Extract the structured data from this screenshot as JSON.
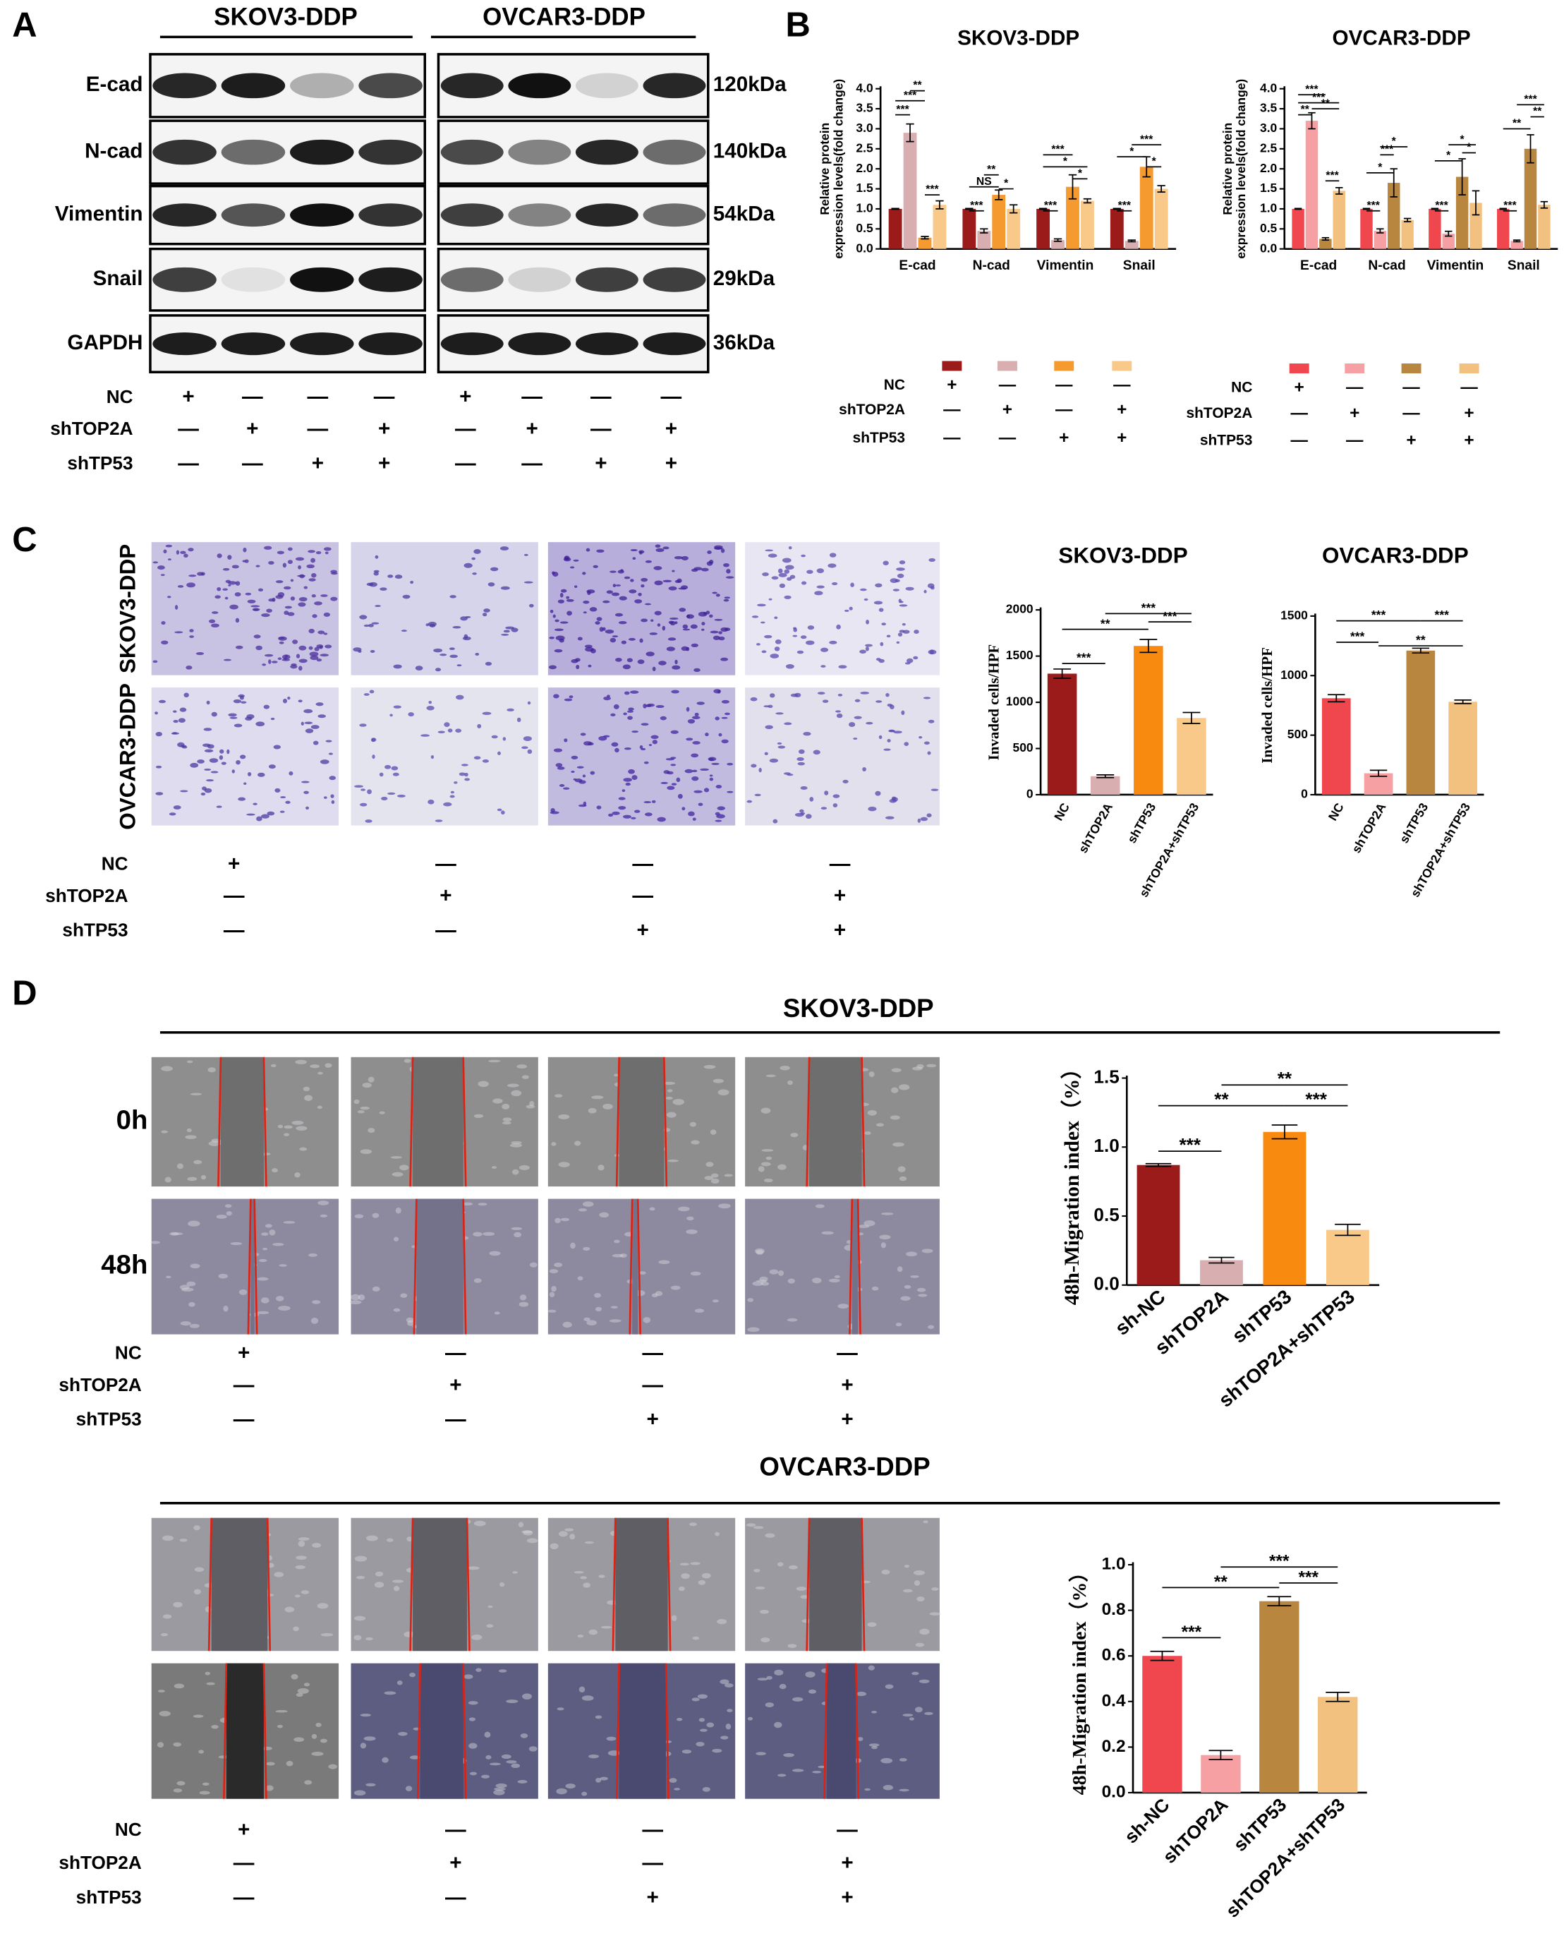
{
  "panel_letters": [
    "A",
    "B",
    "C",
    "D"
  ],
  "blot": {
    "headers": [
      "SKOV3-DDP",
      "OVCAR3-DDP"
    ],
    "proteins": [
      "E-cad",
      "N-cad",
      "Vimentin",
      "Snail",
      "GAPDH"
    ],
    "sizes": [
      "120kDa",
      "140kDa",
      "54kDa",
      "29kDa",
      "36kDa"
    ],
    "conditions": {
      "rows": [
        {
          "label": "NC",
          "signs": [
            "+",
            "—",
            "—",
            "—",
            "+",
            "—",
            "—",
            "—"
          ]
        },
        {
          "label": "shTOP2A",
          "signs": [
            "—",
            "+",
            "—",
            "+",
            "—",
            "+",
            "—",
            "+"
          ]
        },
        {
          "label": "shTP53",
          "signs": [
            "—",
            "—",
            "+",
            "+",
            "—",
            "—",
            "+",
            "+"
          ]
        }
      ]
    }
  },
  "invasion": {
    "row_labels": [
      "SKOV3-DDP",
      "OVCAR3-DDP"
    ],
    "conditions": {
      "rows": [
        {
          "label": "NC",
          "signs": [
            "+",
            "—",
            "—",
            "—"
          ]
        },
        {
          "label": "shTOP2A",
          "signs": [
            "—",
            "+",
            "—",
            "+"
          ]
        },
        {
          "label": "shTP53",
          "signs": [
            "—",
            "—",
            "+",
            "+"
          ]
        }
      ]
    }
  },
  "migration": [
    {
      "title": "SKOV3-DDP",
      "times": [
        "0h",
        "48h"
      ],
      "conditions": {
        "rows": [
          {
            "label": "NC",
            "signs": [
              "+",
              "—",
              "—",
              "—"
            ]
          },
          {
            "label": "shTOP2A",
            "signs": [
              "—",
              "+",
              "—",
              "+"
            ]
          },
          {
            "label": "shTP53",
            "signs": [
              "—",
              "—",
              "+",
              "+"
            ]
          }
        ]
      }
    },
    {
      "title": "OVCAR3-DDP",
      "conditions": {
        "rows": [
          {
            "label": "NC",
            "signs": [
              "+",
              "—",
              "—",
              "—"
            ]
          },
          {
            "label": "shTOP2A",
            "signs": [
              "—",
              "+",
              "—",
              "+"
            ]
          },
          {
            "label": "shTP53",
            "signs": [
              "—",
              "—",
              "+",
              "+"
            ]
          }
        ]
      }
    }
  ],
  "chart_data": [
    {
      "type": "bar",
      "title": "SKOV3-DDP",
      "ylabel": [
        "Relative  protein",
        "expression levels(fold change)"
      ],
      "categories": [
        "E-cad",
        "N-cad",
        "Vimentin",
        "Snail"
      ],
      "series": [
        {
          "color": "#9b1b1b",
          "values": [
            1,
            1,
            1,
            1
          ],
          "errors": [
            0.01,
            0.01,
            0.01,
            0.01
          ]
        },
        {
          "color": "#d8aeb0",
          "values": [
            2.9,
            0.45,
            0.22,
            0.2
          ],
          "errors": [
            0.22,
            0.05,
            0.03,
            0.02
          ]
        },
        {
          "color": "#f59a2f",
          "values": [
            0.28,
            1.35,
            1.55,
            2.05
          ],
          "errors": [
            0.03,
            0.12,
            0.3,
            0.25
          ]
        },
        {
          "color": "#f9c98a",
          "values": [
            1.1,
            1.0,
            1.2,
            1.5
          ],
          "errors": [
            0.1,
            0.1,
            0.05,
            0.08
          ]
        }
      ],
      "ylim": [
        0,
        4
      ],
      "yticks": [
        {
          "value": 0,
          "label": "0.0"
        },
        0.5,
        {
          "value": 1,
          "label": "1.0"
        },
        1.5,
        {
          "value": 2,
          "label": "2.0"
        },
        2.5,
        {
          "value": 3,
          "label": "3.0"
        },
        3.5,
        {
          "value": 4,
          "label": "4.0"
        }
      ],
      "annotations": [
        {
          "text": "**",
          "category": 0,
          "from": 1,
          "to": 2,
          "y": 3.95
        },
        {
          "text": "***",
          "category": 0,
          "from": 0,
          "to": 2,
          "y": 3.7
        },
        {
          "text": "***",
          "category": 0,
          "from": 0,
          "to": 1,
          "y": 3.35
        },
        {
          "text": "***",
          "category": 0,
          "from": 2,
          "to": 3,
          "y": 1.35
        },
        {
          "text": "**",
          "category": 1,
          "from": 1,
          "to": 2,
          "y": 1.85
        },
        {
          "text": "NS",
          "category": 1,
          "from": 0,
          "to": 2,
          "y": 1.55
        },
        {
          "text": "*",
          "category": 1,
          "from": 2,
          "to": 3,
          "y": 1.5
        },
        {
          "text": "***",
          "category": 1,
          "from": 0,
          "to": 1,
          "y": 0.95
        },
        {
          "text": "***",
          "category": 2,
          "from": 0,
          "to": 2,
          "y": 2.35
        },
        {
          "text": "*",
          "category": 2,
          "from": 0,
          "to": 3,
          "y": 2.05
        },
        {
          "text": "*",
          "category": 2,
          "from": 2,
          "to": 3,
          "y": 1.75
        },
        {
          "text": "***",
          "category": 2,
          "from": 0,
          "to": 1,
          "y": 0.95
        },
        {
          "text": "***",
          "category": 3,
          "from": 1,
          "to": 3,
          "y": 2.6
        },
        {
          "text": "*",
          "category": 3,
          "from": 0,
          "to": 2,
          "y": 2.3
        },
        {
          "text": "*",
          "category": 3,
          "from": 2,
          "to": 3,
          "y": 2.05
        },
        {
          "text": "***",
          "category": 3,
          "from": 0,
          "to": 1,
          "y": 0.95
        }
      ],
      "conditions": {
        "rows": [
          {
            "label": "NC",
            "signs": [
              "+",
              "—",
              "—",
              "—"
            ]
          },
          {
            "label": "shTOP2A",
            "signs": [
              "—",
              "+",
              "—",
              "+"
            ]
          },
          {
            "label": "shTP53",
            "signs": [
              "—",
              "—",
              "+",
              "+"
            ]
          }
        ]
      }
    },
    {
      "type": "bar",
      "title": "OVCAR3-DDP",
      "ylabel": [
        "Relative  protein",
        "expression levels(fold change)"
      ],
      "categories": [
        "E-cad",
        "N-cad",
        "Vimentin",
        "Snail"
      ],
      "series": [
        {
          "color": "#f0474f",
          "values": [
            1,
            1,
            1,
            1
          ],
          "errors": [
            0.01,
            0.01,
            0.01,
            0.01
          ]
        },
        {
          "color": "#f6a0a3",
          "values": [
            3.2,
            0.45,
            0.38,
            0.2
          ],
          "errors": [
            0.2,
            0.05,
            0.06,
            0.02
          ]
        },
        {
          "color": "#b8863e",
          "values": [
            0.25,
            1.65,
            1.8,
            2.5
          ],
          "errors": [
            0.03,
            0.35,
            0.45,
            0.35
          ]
        },
        {
          "color": "#f2c07f",
          "values": [
            1.45,
            0.72,
            1.15,
            1.1
          ],
          "errors": [
            0.08,
            0.04,
            0.3,
            0.08
          ]
        }
      ],
      "ylim": [
        0,
        4
      ],
      "yticks": [
        {
          "value": 0,
          "label": "0.0"
        },
        0.5,
        {
          "value": 1,
          "label": "1.0"
        },
        1.5,
        {
          "value": 2,
          "label": "2.0"
        },
        2.5,
        {
          "value": 3,
          "label": "3.0"
        },
        3.5,
        {
          "value": 4,
          "label": "4.0"
        }
      ],
      "annotations": [
        {
          "text": "***",
          "category": 0,
          "from": 0,
          "to": 2,
          "y": 3.85
        },
        {
          "text": "***",
          "category": 0,
          "from": 0,
          "to": 3,
          "y": 3.65
        },
        {
          "text": "**",
          "category": 0,
          "from": 1,
          "to": 3,
          "y": 3.5
        },
        {
          "text": "**",
          "category": 0,
          "from": 0,
          "to": 1,
          "y": 3.35
        },
        {
          "text": "***",
          "category": 0,
          "from": 2,
          "to": 3,
          "y": 1.7
        },
        {
          "text": "*",
          "category": 1,
          "from": 1,
          "to": 3,
          "y": 2.55
        },
        {
          "text": "***",
          "category": 1,
          "from": 1,
          "to": 2,
          "y": 2.35
        },
        {
          "text": "*",
          "category": 1,
          "from": 0,
          "to": 2,
          "y": 1.9
        },
        {
          "text": "***",
          "category": 1,
          "from": 0,
          "to": 1,
          "y": 0.95
        },
        {
          "text": "*",
          "category": 2,
          "from": 1,
          "to": 3,
          "y": 2.6
        },
        {
          "text": "*",
          "category": 2,
          "from": 2,
          "to": 3,
          "y": 2.4
        },
        {
          "text": "*",
          "category": 2,
          "from": 0,
          "to": 2,
          "y": 2.2
        },
        {
          "text": "***",
          "category": 2,
          "from": 0,
          "to": 1,
          "y": 0.95
        },
        {
          "text": "***",
          "category": 3,
          "from": 1,
          "to": 3,
          "y": 3.6
        },
        {
          "text": "**",
          "category": 3,
          "from": 2,
          "to": 3,
          "y": 3.3
        },
        {
          "text": "**",
          "category": 3,
          "from": 0,
          "to": 2,
          "y": 3.0
        },
        {
          "text": "***",
          "category": 3,
          "from": 0,
          "to": 1,
          "y": 0.95
        }
      ],
      "conditions": {
        "rows": [
          {
            "label": "NC",
            "signs": [
              "+",
              "—",
              "—",
              "—"
            ]
          },
          {
            "label": "shTOP2A",
            "signs": [
              "—",
              "+",
              "—",
              "+"
            ]
          },
          {
            "label": "shTP53",
            "signs": [
              "—",
              "—",
              "+",
              "+"
            ]
          }
        ]
      }
    },
    {
      "type": "bar",
      "title": "SKOV3-DDP",
      "ylabel": [
        "Invaded cells/HPF"
      ],
      "categories": [
        "NC",
        "shTOP2A",
        "shTP53",
        "shTOP2A+shTP53"
      ],
      "values": [
        1310,
        200,
        1610,
        830
      ],
      "errors": [
        50,
        15,
        70,
        60
      ],
      "colors": [
        "#9b1b1b",
        "#d8aeb0",
        "#f98a10",
        "#f9c98a"
      ],
      "ylim": [
        0,
        2000
      ],
      "yticks": [
        0,
        500,
        1000,
        1500,
        2000
      ],
      "annotations": [
        {
          "text": "***",
          "from": 1,
          "to": 3,
          "y": 1960
        },
        {
          "text": "***",
          "from": 2,
          "to": 3,
          "y": 1870
        },
        {
          "text": "**",
          "from": 0,
          "to": 2,
          "y": 1790
        },
        {
          "text": "***",
          "from": 0,
          "to": 1,
          "y": 1420
        }
      ]
    },
    {
      "type": "bar",
      "title": "OVCAR3-DDP",
      "ylabel": [
        "Invaded cells/HPF"
      ],
      "categories": [
        "NC",
        "shTOP2A",
        "shTP53",
        "shTOP2A+shTP53"
      ],
      "values": [
        810,
        180,
        1210,
        780
      ],
      "errors": [
        30,
        25,
        20,
        15
      ],
      "colors": [
        "#f0474f",
        "#f6a0a3",
        "#b8863e",
        "#f2c07f"
      ],
      "ylim": [
        0,
        1500
      ],
      "yticks": [
        0,
        500,
        1000,
        1500
      ],
      "annotations": [
        {
          "text": "***",
          "from": 0,
          "to": 2,
          "y": 1460
        },
        {
          "text": "***",
          "from": 2,
          "to": 3,
          "y": 1460
        },
        {
          "text": "***",
          "from": 0,
          "to": 1,
          "y": 1280
        },
        {
          "text": "**",
          "from": 1,
          "to": 3,
          "y": 1250
        }
      ]
    },
    {
      "type": "bar",
      "ylabel": [
        "48h-Migration index（%）"
      ],
      "categories": [
        "sh-NC",
        "shTOP2A",
        "shTP53",
        "shTOP2A+shTP53"
      ],
      "values": [
        0.87,
        0.18,
        1.11,
        0.4
      ],
      "errors": [
        0.01,
        0.02,
        0.05,
        0.04
      ],
      "colors": [
        "#9b1b1b",
        "#d8aeb0",
        "#f98a10",
        "#f9c98a"
      ],
      "ylim": [
        0,
        1.5
      ],
      "yticks": [
        {
          "value": 0,
          "label": "0.0"
        },
        0.5,
        {
          "value": 1,
          "label": "1.0"
        },
        1.5
      ],
      "annotations": [
        {
          "text": "**",
          "from": 1,
          "to": 3,
          "y": 1.45
        },
        {
          "text": "**",
          "from": 0,
          "to": 2,
          "y": 1.3
        },
        {
          "text": "***",
          "from": 2,
          "to": 3,
          "y": 1.3
        },
        {
          "text": "***",
          "from": 0,
          "to": 1,
          "y": 0.97
        }
      ]
    },
    {
      "type": "bar",
      "ylabel": [
        "48h-Migration index（%）"
      ],
      "categories": [
        "sh-NC",
        "shTOP2A",
        "shTP53",
        "shTOP2A+shTP53"
      ],
      "values": [
        0.6,
        0.165,
        0.84,
        0.42
      ],
      "errors": [
        0.02,
        0.02,
        0.02,
        0.02
      ],
      "colors": [
        "#f0474f",
        "#f6a0a3",
        "#b8863e",
        "#f2c07f"
      ],
      "ylim": [
        0,
        1
      ],
      "yticks": [
        {
          "value": 0,
          "label": "0.0"
        },
        0.2,
        0.4,
        0.6,
        0.8,
        {
          "value": 1,
          "label": "1.0"
        }
      ],
      "annotations": [
        {
          "text": "***",
          "from": 1,
          "to": 3,
          "y": 0.99
        },
        {
          "text": "***",
          "from": 2,
          "to": 3,
          "y": 0.92
        },
        {
          "text": "**",
          "from": 0,
          "to": 2,
          "y": 0.9
        },
        {
          "text": "***",
          "from": 0,
          "to": 1,
          "y": 0.68
        }
      ]
    }
  ]
}
